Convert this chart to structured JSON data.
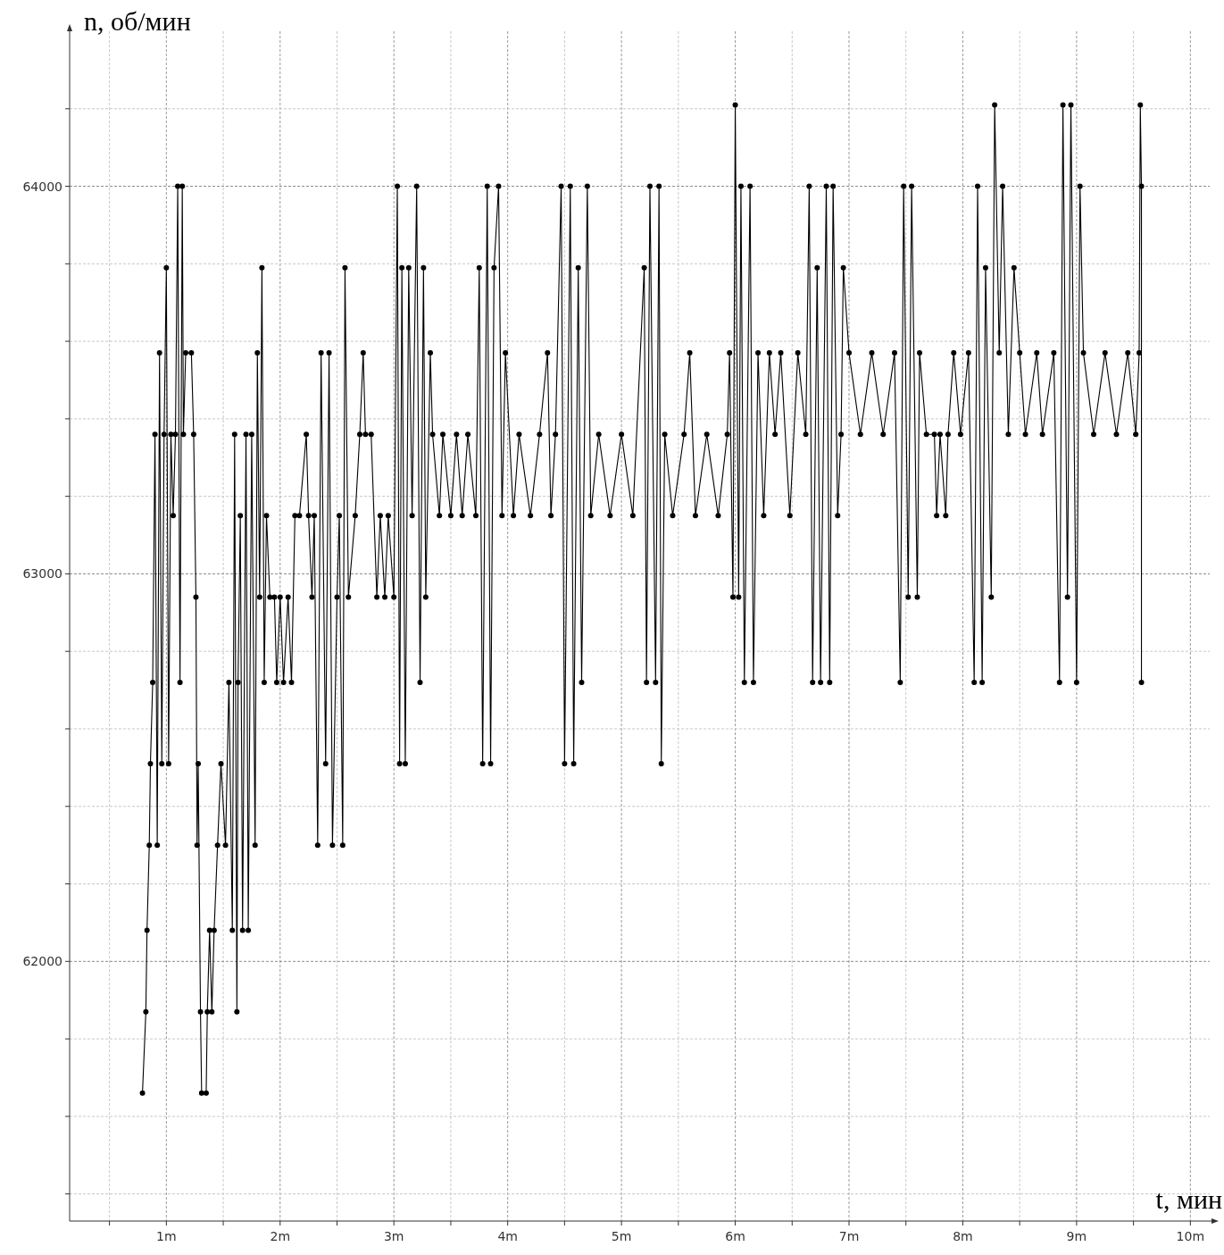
{
  "chart_data": {
    "type": "line",
    "xlabel": "t, мин",
    "ylabel": "n, об/мин",
    "xlim": [
      0.15,
      10.17
    ],
    "ylim": [
      61330,
      64400
    ],
    "xticks": [
      {
        "value": 0.5,
        "label": null
      },
      {
        "value": 1,
        "label": "1m"
      },
      {
        "value": 1.5,
        "label": null
      },
      {
        "value": 2,
        "label": "2m"
      },
      {
        "value": 2.5,
        "label": null
      },
      {
        "value": 3,
        "label": "3m"
      },
      {
        "value": 3.5,
        "label": null
      },
      {
        "value": 4,
        "label": "4m"
      },
      {
        "value": 4.5,
        "label": null
      },
      {
        "value": 5,
        "label": "5m"
      },
      {
        "value": 5.5,
        "label": null
      },
      {
        "value": 6,
        "label": "6m"
      },
      {
        "value": 6.5,
        "label": null
      },
      {
        "value": 7,
        "label": "7m"
      },
      {
        "value": 7.5,
        "label": null
      },
      {
        "value": 8,
        "label": "8m"
      },
      {
        "value": 8.5,
        "label": null
      },
      {
        "value": 9,
        "label": "9m"
      },
      {
        "value": 9.5,
        "label": null
      },
      {
        "value": 10,
        "label": "10m"
      }
    ],
    "yticks": [
      {
        "value": 61400,
        "label": null
      },
      {
        "value": 61600,
        "label": null
      },
      {
        "value": 61800,
        "label": null
      },
      62000,
      {
        "value": 62200,
        "label": null
      },
      {
        "value": 62400,
        "label": null
      },
      {
        "value": 62600,
        "label": null
      },
      {
        "value": 62800,
        "label": null
      },
      63000,
      {
        "value": 63200,
        "label": null
      },
      {
        "value": 63400,
        "label": null
      },
      {
        "value": 63600,
        "label": null
      },
      {
        "value": 63800,
        "label": null
      },
      64000,
      {
        "value": 64200,
        "label": null
      }
    ],
    "grid": true,
    "marker": "circle",
    "line_style": "solid",
    "series": [
      {
        "color": "#000000",
        "x": [
          0.79,
          0.82,
          0.83,
          0.85,
          0.86,
          0.88,
          0.9,
          0.92,
          0.94,
          0.96,
          0.98,
          1.0,
          1.02,
          1.04,
          1.06,
          1.08,
          1.1,
          1.12,
          1.14,
          1.15,
          1.17,
          1.22,
          1.24,
          1.26,
          1.27,
          1.28,
          1.3,
          1.31,
          1.35,
          1.36,
          1.38,
          1.4,
          1.42,
          1.45,
          1.48,
          1.52,
          1.55,
          1.58,
          1.6,
          1.62,
          1.63,
          1.65,
          1.67,
          1.7,
          1.72,
          1.75,
          1.78,
          1.8,
          1.82,
          1.84,
          1.86,
          1.88,
          1.91,
          1.95,
          1.97,
          2.0,
          2.03,
          2.07,
          2.1,
          2.13,
          2.17,
          2.23,
          2.25,
          2.28,
          2.3,
          2.33,
          2.36,
          2.4,
          2.43,
          2.46,
          2.5,
          2.52,
          2.55,
          2.57,
          2.6,
          2.66,
          2.7,
          2.73,
          2.75,
          2.8,
          2.85,
          2.88,
          2.92,
          2.95,
          3.0,
          3.03,
          3.05,
          3.07,
          3.1,
          3.13,
          3.16,
          3.2,
          3.23,
          3.26,
          3.28,
          3.32,
          3.34,
          3.4,
          3.43,
          3.5,
          3.55,
          3.6,
          3.65,
          3.72,
          3.75,
          3.78,
          3.82,
          3.85,
          3.88,
          3.92,
          3.95,
          3.98,
          4.05,
          4.1,
          4.2,
          4.28,
          4.35,
          4.38,
          4.42,
          4.47,
          4.5,
          4.55,
          4.58,
          4.62,
          4.65,
          4.7,
          4.73,
          4.8,
          4.9,
          5.0,
          5.1,
          5.2,
          5.22,
          5.25,
          5.3,
          5.33,
          5.35,
          5.38,
          5.45,
          5.55,
          5.6,
          5.65,
          5.75,
          5.85,
          5.93,
          5.95,
          5.98,
          6.0,
          6.03,
          6.05,
          6.08,
          6.13,
          6.16,
          6.2,
          6.25,
          6.3,
          6.35,
          6.4,
          6.48,
          6.55,
          6.62,
          6.65,
          6.68,
          6.72,
          6.75,
          6.8,
          6.83,
          6.86,
          6.9,
          6.93,
          6.95,
          7.0,
          7.1,
          7.2,
          7.3,
          7.4,
          7.45,
          7.48,
          7.52,
          7.55,
          7.6,
          7.62,
          7.68,
          7.75,
          7.77,
          7.8,
          7.85,
          7.87,
          7.92,
          7.98,
          8.05,
          8.1,
          8.13,
          8.17,
          8.2,
          8.25,
          8.28,
          8.32,
          8.35,
          8.4,
          8.45,
          8.5,
          8.55,
          8.65,
          8.7,
          8.8,
          8.85,
          8.88,
          8.92,
          8.95,
          9.0,
          9.03,
          9.06,
          9.15,
          9.25,
          9.35,
          9.45,
          9.52,
          9.55,
          9.56,
          9.57,
          9.57
        ],
        "values": [
          61660,
          61870,
          62080,
          62300,
          62510,
          62720,
          63360,
          62300,
          63570,
          62510,
          63360,
          63790,
          62510,
          63360,
          63150,
          63360,
          64000,
          62720,
          64000,
          63360,
          63570,
          63570,
          63360,
          62940,
          62300,
          62510,
          61870,
          61660,
          61660,
          61870,
          62080,
          61870,
          62080,
          62300,
          62510,
          62300,
          62720,
          62080,
          63360,
          61870,
          62720,
          63150,
          62080,
          63360,
          62080,
          63360,
          62300,
          63570,
          62940,
          63790,
          62720,
          63150,
          62940,
          62940,
          62720,
          62940,
          62720,
          62940,
          62720,
          63150,
          63150,
          63360,
          63150,
          62940,
          63150,
          62300,
          63570,
          62510,
          63570,
          62300,
          62940,
          63150,
          62300,
          63790,
          62940,
          63150,
          63360,
          63570,
          63360,
          63360,
          62940,
          63150,
          62940,
          63150,
          62940,
          64000,
          62510,
          63790,
          62510,
          63790,
          63150,
          64000,
          62720,
          63790,
          62940,
          63570,
          63360,
          63150,
          63360,
          63150,
          63360,
          63150,
          63360,
          63150,
          63790,
          62510,
          64000,
          62510,
          63790,
          64000,
          63150,
          63570,
          63150,
          63360,
          63150,
          63360,
          63570,
          63150,
          63360,
          64000,
          62510,
          64000,
          62510,
          63790,
          62720,
          64000,
          63150,
          63360,
          63150,
          63360,
          63150,
          63790,
          62720,
          64000,
          62720,
          64000,
          62510,
          63360,
          63150,
          63360,
          63570,
          63150,
          63360,
          63150,
          63360,
          63570,
          62940,
          64210,
          62940,
          64000,
          62720,
          64000,
          62720,
          63570,
          63150,
          63570,
          63360,
          63570,
          63150,
          63570,
          63360,
          64000,
          62720,
          63790,
          62720,
          64000,
          62720,
          64000,
          63150,
          63360,
          63790,
          63570,
          63360,
          63570,
          63360,
          63570,
          62720,
          64000,
          62940,
          64000,
          62940,
          63570,
          63360,
          63360,
          63150,
          63360,
          63150,
          63360,
          63570,
          63360,
          63570,
          62720,
          64000,
          62720,
          63790,
          62940,
          64210,
          63570,
          64000,
          63360,
          63790,
          63570,
          63360,
          63570,
          63360,
          63570,
          62720,
          64210,
          62940,
          64210,
          62720,
          64000,
          63570,
          63360,
          63570,
          63360,
          63570,
          63360,
          63570,
          64210,
          64000,
          62720
        ]
      }
    ]
  }
}
